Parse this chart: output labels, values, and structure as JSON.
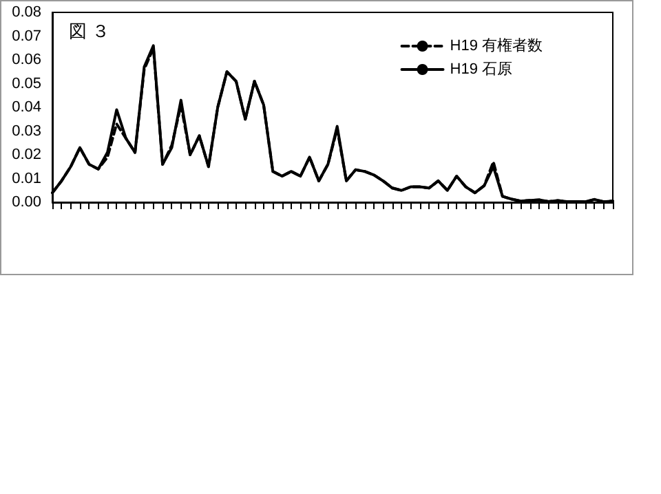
{
  "chart_data": {
    "type": "line",
    "title": "図 ３",
    "categories": [
      null,
      null,
      null,
      null,
      null,
      null,
      null,
      null,
      null,
      null,
      null,
      null,
      null,
      null,
      null,
      null,
      null,
      null,
      null,
      null,
      null,
      null,
      null,
      null,
      null,
      null,
      null,
      null,
      null,
      null,
      null,
      null,
      null,
      null,
      null,
      null,
      null,
      null,
      null,
      null,
      null,
      null,
      null,
      null,
      null,
      null,
      null,
      null,
      null,
      null,
      null,
      null,
      null,
      null,
      null,
      null,
      null,
      null,
      null,
      null,
      null,
      null
    ],
    "series": [
      {
        "name": "H19 有権者数",
        "color": "#000000",
        "line_style": "dashed",
        "values": [
          0.004,
          0.009,
          0.015,
          0.023,
          0.016,
          0.014,
          0.019,
          0.033,
          0.027,
          0.021,
          0.056,
          0.065,
          0.016,
          0.024,
          0.041,
          0.02,
          0.028,
          0.015,
          0.04,
          0.055,
          0.051,
          0.035,
          0.051,
          0.041,
          0.013,
          0.011,
          0.013,
          0.011,
          0.019,
          0.009,
          0.016,
          0.031,
          0.009,
          0.0137,
          0.013,
          0.0115,
          0.009,
          0.006,
          0.005,
          0.0065,
          0.0065,
          0.006,
          0.009,
          0.005,
          0.011,
          0.0065,
          0.004,
          0.007,
          0.017,
          0.0025,
          0.0013,
          0.0005,
          0.0008,
          0.001,
          0.0003,
          0.0007,
          0.0003,
          0.0003,
          0.0002,
          0.0012,
          0.0002,
          0.0005
        ]
      },
      {
        "name": "H19 石原",
        "color": "#000000",
        "line_style": "solid",
        "values": [
          0.004,
          0.009,
          0.015,
          0.023,
          0.016,
          0.014,
          0.021,
          0.039,
          0.027,
          0.021,
          0.057,
          0.066,
          0.016,
          0.023,
          0.043,
          0.02,
          0.028,
          0.015,
          0.04,
          0.055,
          0.051,
          0.035,
          0.051,
          0.041,
          0.013,
          0.011,
          0.013,
          0.011,
          0.019,
          0.009,
          0.016,
          0.032,
          0.009,
          0.0137,
          0.013,
          0.0115,
          0.009,
          0.006,
          0.005,
          0.0065,
          0.0065,
          0.006,
          0.009,
          0.005,
          0.011,
          0.0065,
          0.004,
          0.007,
          0.015,
          0.0025,
          0.0013,
          0.0005,
          0.0008,
          0.001,
          0.0003,
          0.0007,
          0.0003,
          0.0003,
          0.0002,
          0.0012,
          0.0002,
          0.0005
        ]
      }
    ],
    "ylim": [
      0,
      0.08
    ],
    "yticks": [
      {
        "value": 0,
        "label": "0.00"
      },
      {
        "value": 0.01,
        "label": "0.01"
      },
      {
        "value": 0.02,
        "label": "0.02"
      },
      {
        "value": 0.03,
        "label": "0.03"
      },
      {
        "value": 0.04,
        "label": "0.04"
      },
      {
        "value": 0.05,
        "label": "0.05"
      },
      {
        "value": 0.06,
        "label": "0.06"
      },
      {
        "value": 0.07,
        "label": "0.07"
      },
      {
        "value": 0.08,
        "label": "0.08"
      }
    ],
    "grid": false,
    "legend": "top right",
    "marker": "none"
  }
}
